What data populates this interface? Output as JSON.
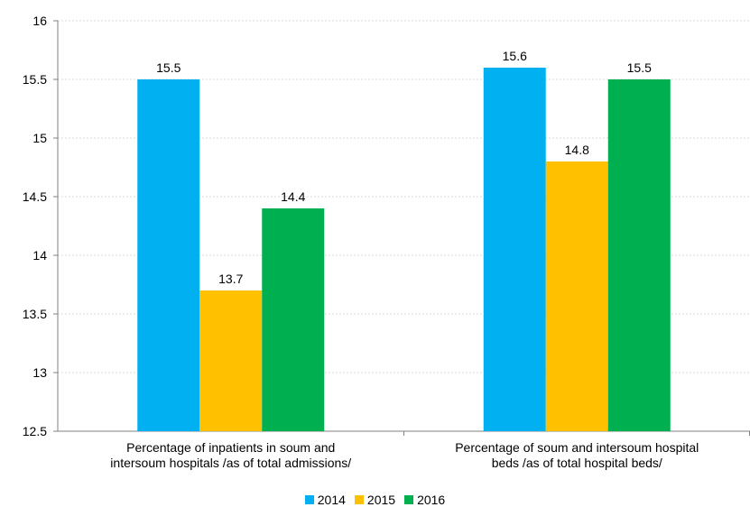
{
  "chart_data": {
    "type": "bar",
    "title": "",
    "xlabel": "",
    "ylabel": "",
    "ylim": [
      12.5,
      16
    ],
    "yticks": [
      "12.5",
      "13",
      "13.5",
      "14",
      "14.5",
      "15",
      "15.5",
      "16"
    ],
    "grid": true,
    "legend_position": "bottom",
    "categories": [
      [
        "Percentage of inpatients in soum and",
        "intersoum hospitals /as of total admissions/"
      ],
      [
        "Percentage of soum and intersoum hospital",
        "beds /as of total hospital beds/"
      ]
    ],
    "series": [
      {
        "name": "2014",
        "color": "#00B0F0",
        "values": [
          15.5,
          15.6
        ],
        "labels": [
          "15.5",
          "15.6"
        ]
      },
      {
        "name": "2015",
        "color": "#FFC000",
        "values": [
          13.7,
          14.8
        ],
        "labels": [
          "13.7",
          "14.8"
        ]
      },
      {
        "name": "2016",
        "color": "#00B050",
        "values": [
          14.4,
          15.5
        ],
        "labels": [
          "14.4",
          "15.5"
        ]
      }
    ]
  }
}
